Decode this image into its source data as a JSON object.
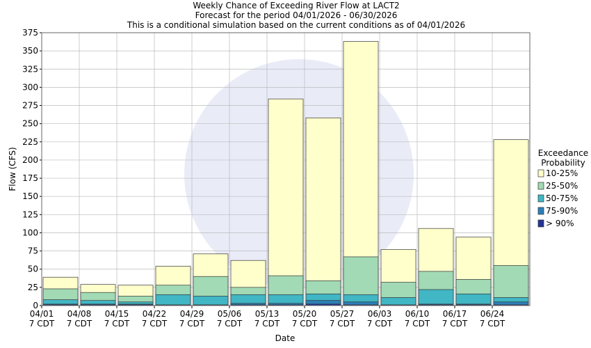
{
  "chart_data": {
    "type": "bar",
    "title": [
      "Weekly Chance of Exceeding River Flow at LACT2",
      "Forecast for the period 04/01/2026 - 06/30/2026",
      "This is a conditional simulation based on the current conditions as of 04/01/2026"
    ],
    "x_label": "Date",
    "y_label": "Flow (CFS)",
    "legend_title": [
      "Exceedance",
      "Probability"
    ],
    "categories": [
      [
        "04/01",
        "7 CDT"
      ],
      [
        "04/08",
        "7 CDT"
      ],
      [
        "04/15",
        "7 CDT"
      ],
      [
        "04/22",
        "7 CDT"
      ],
      [
        "04/29",
        "7 CDT"
      ],
      [
        "05/06",
        "7 CDT"
      ],
      [
        "05/13",
        "7 CDT"
      ],
      [
        "05/20",
        "7 CDT"
      ],
      [
        "05/27",
        "7 CDT"
      ],
      [
        "06/03",
        "7 CDT"
      ],
      [
        "06/10",
        "7 CDT"
      ],
      [
        "06/17",
        "7 CDT"
      ],
      [
        "06/24",
        "7 CDT"
      ]
    ],
    "series": [
      {
        "name": "10-25%",
        "color": "#ffffcc",
        "values": [
          39,
          29,
          28,
          54,
          71,
          62,
          284,
          258,
          363,
          77,
          106,
          94,
          228
        ]
      },
      {
        "name": "25-50%",
        "color": "#a1dab4",
        "values": [
          23,
          18,
          13,
          28,
          40,
          25,
          41,
          34,
          67,
          32,
          47,
          36,
          55
        ]
      },
      {
        "name": "50-75%",
        "color": "#41b6c4",
        "values": [
          8,
          7,
          5,
          15,
          13,
          15,
          15,
          16,
          15,
          11,
          22,
          16,
          11
        ]
      },
      {
        "name": "75-90%",
        "color": "#2c7fb8",
        "values": [
          2,
          2,
          2,
          1,
          1,
          3,
          3,
          7,
          5,
          1,
          2,
          2,
          5
        ]
      },
      {
        "name": "> 90%",
        "color": "#253494",
        "values": [
          1,
          1,
          1,
          0.5,
          0.5,
          1,
          1,
          2,
          1,
          0.5,
          1,
          1,
          1
        ]
      }
    ],
    "ylim": [
      0,
      375
    ],
    "yticks": [
      0,
      25,
      50,
      75,
      100,
      125,
      150,
      175,
      200,
      225,
      250,
      275,
      300,
      325,
      350,
      375
    ],
    "grid": true
  }
}
